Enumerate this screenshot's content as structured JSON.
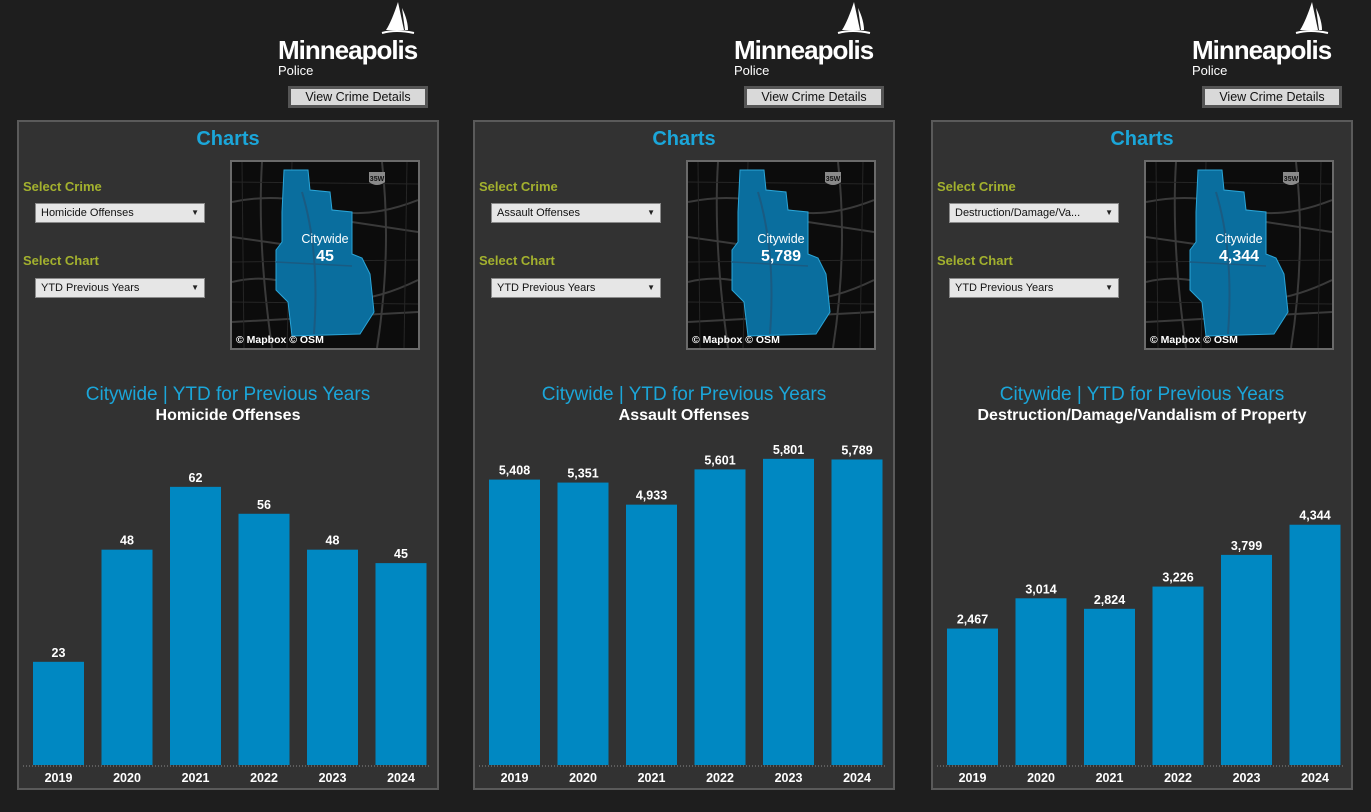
{
  "panels": [
    {
      "logo": {
        "name": "Minneapolis",
        "sub": "Police"
      },
      "details_button": "View Crime Details",
      "title": "Charts",
      "select_crime_label": "Select Crime",
      "select_crime_value": "Homicide Offenses",
      "select_chart_label": "Select Chart",
      "select_chart_value": "YTD Previous Years",
      "map": {
        "area": "Citywide",
        "value": "45",
        "credit": "© Mapbox  © OSM",
        "shield": "35W"
      },
      "chart_title": "Citywide | YTD for Previous Years",
      "chart_subtitle": "Homicide Offenses"
    },
    {
      "logo": {
        "name": "Minneapolis",
        "sub": "Police"
      },
      "details_button": "View Crime Details",
      "title": "Charts",
      "select_crime_label": "Select Crime",
      "select_crime_value": "Assault Offenses",
      "select_chart_label": "Select Chart",
      "select_chart_value": "YTD Previous Years",
      "map": {
        "area": "Citywide",
        "value": "5,789",
        "credit": "© Mapbox  © OSM",
        "shield": "35W"
      },
      "chart_title": "Citywide | YTD for Previous Years",
      "chart_subtitle": "Assault Offenses"
    },
    {
      "logo": {
        "name": "Minneapolis",
        "sub": "Police"
      },
      "details_button": "View Crime Details",
      "title": "Charts",
      "select_crime_label": "Select Crime",
      "select_crime_value": "Destruction/Damage/Va...",
      "select_chart_label": "Select Chart",
      "select_chart_value": "YTD Previous Years",
      "map": {
        "area": "Citywide",
        "value": "4,344",
        "credit": "© Mapbox  © OSM",
        "shield": "35W"
      },
      "chart_title": "Citywide | YTD for Previous Years",
      "chart_subtitle": "Destruction/Damage/Vandalism of Property"
    }
  ],
  "chart_data": [
    {
      "type": "bar",
      "categories": [
        "2019",
        "2020",
        "2021",
        "2022",
        "2023",
        "2024"
      ],
      "values": [
        23,
        48,
        62,
        56,
        48,
        45
      ],
      "labels": [
        "23",
        "48",
        "62",
        "56",
        "48",
        "45"
      ],
      "ylim": [
        0,
        72
      ]
    },
    {
      "type": "bar",
      "categories": [
        "2019",
        "2020",
        "2021",
        "2022",
        "2023",
        "2024"
      ],
      "values": [
        5408,
        5351,
        4933,
        5601,
        5801,
        5789
      ],
      "labels": [
        "5,408",
        "5,351",
        "4,933",
        "5,601",
        "5,801",
        "5,789"
      ],
      "ylim": [
        0,
        6120
      ]
    },
    {
      "type": "bar",
      "categories": [
        "2019",
        "2020",
        "2021",
        "2022",
        "2023",
        "2024"
      ],
      "values": [
        2467,
        3014,
        2824,
        3226,
        3799,
        4344
      ],
      "labels": [
        "2,467",
        "3,014",
        "2,824",
        "3,226",
        "3,799",
        "4,344"
      ],
      "ylim": [
        0,
        5840
      ]
    }
  ],
  "colors": {
    "accent": "#1ba6d9",
    "bar": "#0088c2",
    "label": "#a3b12e",
    "map_fill": "#0a6e9e"
  }
}
